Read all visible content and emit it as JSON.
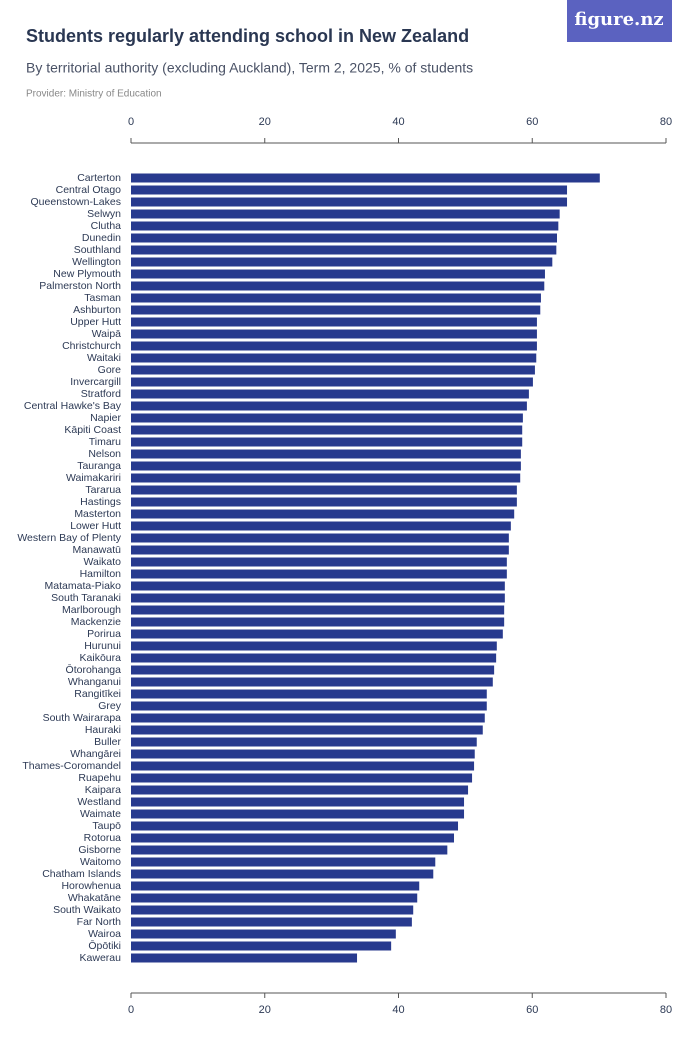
{
  "logo": "figure.nz",
  "chart_data": {
    "type": "bar",
    "orientation": "horizontal",
    "title": "Students regularly attending school in New Zealand",
    "subtitle": "By territorial authority (excluding Auckland), Term 2, 2025, % of students",
    "source": "Provider: Ministry of Education",
    "color": "#283a8e",
    "categories": [
      "Carterton",
      "Central Otago",
      "Queenstown-Lakes",
      "Selwyn",
      "Clutha",
      "Dunedin",
      "Southland",
      "Wellington",
      "New Plymouth",
      "Palmerston North",
      "Tasman",
      "Ashburton",
      "Upper Hutt",
      "Waipā",
      "Christchurch",
      "Waitaki",
      "Gore",
      "Invercargill",
      "Stratford",
      "Central Hawke's Bay",
      "Napier",
      "Kāpiti Coast",
      "Timaru",
      "Nelson",
      "Tauranga",
      "Waimakariri",
      "Tararua",
      "Hastings",
      "Masterton",
      "Lower Hutt",
      "Western Bay of Plenty",
      "Manawatū",
      "Waikato",
      "Hamilton",
      "Matamata-Piako",
      "South Taranaki",
      "Marlborough",
      "Mackenzie",
      "Porirua",
      "Hurunui",
      "Kaikōura",
      "Ōtorohanga",
      "Whanganui",
      "Rangitīkei",
      "Grey",
      "South Wairarapa",
      "Hauraki",
      "Buller",
      "Whangārei",
      "Thames-Coromandel",
      "Ruapehu",
      "Kaipara",
      "Westland",
      "Waimate",
      "Taupō",
      "Rotorua",
      "Gisborne",
      "Waitomo",
      "Chatham Islands",
      "Horowhenua",
      "Whakatāne",
      "South Waikato",
      "Far North",
      "Wairoa",
      "Ōpōtiki",
      "Kawerau"
    ],
    "values": [
      70.1,
      65.2,
      65.2,
      64.1,
      63.9,
      63.7,
      63.6,
      63.0,
      61.9,
      61.8,
      61.3,
      61.2,
      60.7,
      60.7,
      60.7,
      60.6,
      60.4,
      60.1,
      59.5,
      59.2,
      58.6,
      58.5,
      58.5,
      58.3,
      58.3,
      58.2,
      57.7,
      57.7,
      57.3,
      56.8,
      56.5,
      56.5,
      56.2,
      56.2,
      55.9,
      55.9,
      55.8,
      55.8,
      55.6,
      54.7,
      54.6,
      54.3,
      54.1,
      53.2,
      53.2,
      52.9,
      52.6,
      51.7,
      51.4,
      51.3,
      51.0,
      50.4,
      49.8,
      49.8,
      48.9,
      48.3,
      47.3,
      45.5,
      45.2,
      43.1,
      42.8,
      42.2,
      42.0,
      39.6,
      38.9,
      33.8
    ],
    "xlim": [
      0,
      80
    ],
    "xticks": [
      0,
      20,
      40,
      60,
      80
    ]
  }
}
